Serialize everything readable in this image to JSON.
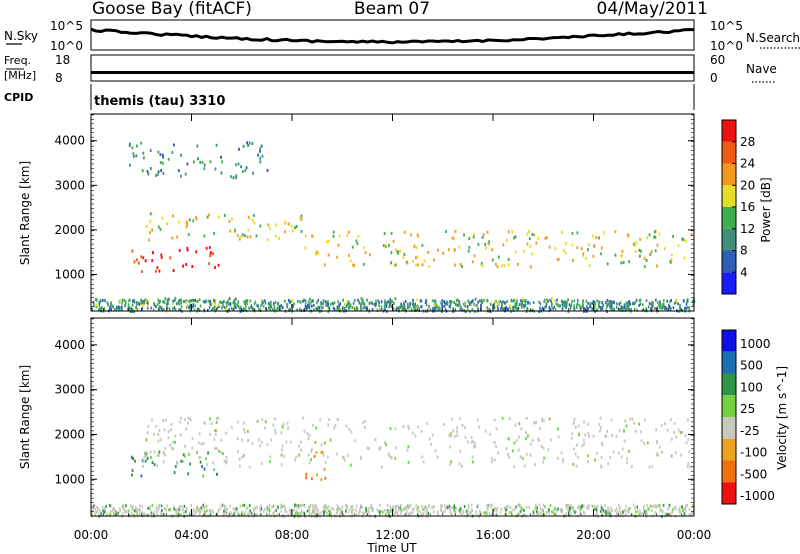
{
  "header": {
    "station": "Goose Bay (fitACF)",
    "beam": "Beam 07",
    "date": "04/May/2011"
  },
  "top_panels": {
    "nsky_label": "N.Sky",
    "nsky_ticks": [
      "10^5",
      "10^0"
    ],
    "nsearch_label": "N.Search",
    "nsearch_ticks": [
      "10^5",
      "10^0"
    ],
    "freq_label_line1": "Freq.",
    "freq_label_line2": "[MHz]",
    "freq_ticks": [
      "18",
      "8"
    ],
    "nave_label": "Nave",
    "nave_ticks": [
      "60",
      "0"
    ],
    "cpid_label": "CPID",
    "cpid_value": "themis (tau) 3310"
  },
  "chart_data": [
    {
      "type": "heatmap",
      "panel": "power",
      "ylabel": "Slant Range [km]",
      "y_ticks": [
        1000,
        2000,
        3000,
        4000
      ],
      "ylim": [
        180,
        4600
      ],
      "colorbar": {
        "label": "Power [dB]",
        "ticks": [
          "4",
          "8",
          "12",
          "16",
          "20",
          "24",
          "28"
        ],
        "colors": [
          "#1a1aff",
          "#2f5fb4",
          "#3f8f7a",
          "#3fae50",
          "#e6dc2a",
          "#f39a1e",
          "#f05a12",
          "#ef1010"
        ]
      },
      "features": [
        {
          "x_hr": [
            1.5,
            5.2
          ],
          "y_km": [
            1100,
            1650
          ],
          "level": 7
        },
        {
          "x_hr": [
            2.0,
            8.5
          ],
          "y_km": [
            1800,
            2400
          ],
          "level": 4
        },
        {
          "x_hr": [
            8.5,
            24.0
          ],
          "y_km": [
            1200,
            2000
          ],
          "level": 4
        },
        {
          "x_hr": [
            0.0,
            24.0
          ],
          "y_km": [
            200,
            500
          ],
          "level": 3
        },
        {
          "x_hr": [
            1.5,
            7.0
          ],
          "y_km": [
            3200,
            4000
          ],
          "level": 2
        }
      ]
    },
    {
      "type": "heatmap",
      "panel": "velocity",
      "ylabel": "Slant Range [km]",
      "y_ticks": [
        1000,
        2000,
        3000,
        4000
      ],
      "ylim": [
        180,
        4600
      ],
      "colorbar": {
        "label": "Velocity [m s^-1]",
        "ticks": [
          "1000",
          "500",
          "100",
          "25",
          "-25",
          "-100",
          "-500",
          "-1000"
        ],
        "colors": [
          "#1010e6",
          "#1c6fb4",
          "#2f9448",
          "#75d140",
          "#c8c8bf",
          "#f0a020",
          "#f07010",
          "#ef1010"
        ]
      },
      "features": [
        {
          "x_hr": [
            1.5,
            5.2
          ],
          "y_km": [
            1100,
            1650
          ],
          "velocity": "100 to 500"
        },
        {
          "x_hr": [
            2.0,
            24.0
          ],
          "y_km": [
            1300,
            2400
          ],
          "velocity": "-25 to 25"
        },
        {
          "x_hr": [
            8.5,
            9.3
          ],
          "y_km": [
            1000,
            1800
          ],
          "velocity": "-500 to -100"
        }
      ]
    }
  ],
  "x_axis": {
    "label": "Time UT",
    "ticks": [
      "00:00",
      "04:00",
      "08:00",
      "12:00",
      "16:00",
      "20:00",
      "00:00"
    ]
  },
  "colors": {
    "line": "#000000",
    "grey_scatter": "#c8c8bf"
  }
}
